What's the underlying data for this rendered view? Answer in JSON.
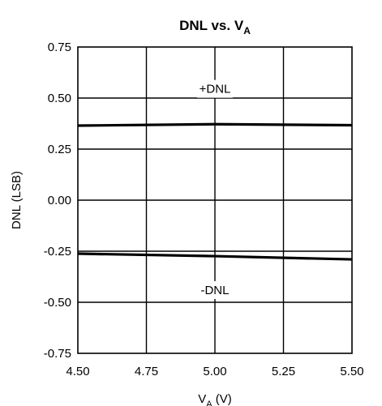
{
  "chart_data": {
    "type": "line",
    "title": {
      "main": "DNL vs. V",
      "sub": "A"
    },
    "xlabel": {
      "main": "V",
      "sub": "A",
      "suffix": " (V)"
    },
    "ylabel": "DNL (LSB)",
    "xlim": [
      4.5,
      5.5
    ],
    "ylim": [
      -0.75,
      0.75
    ],
    "x_ticks": [
      4.5,
      4.75,
      5.0,
      5.25,
      5.5
    ],
    "x_tick_labels": [
      "4.50",
      "4.75",
      "5.00",
      "5.25",
      "5.50"
    ],
    "y_ticks": [
      0.75,
      0.5,
      0.25,
      0.0,
      -0.25,
      -0.5,
      -0.75
    ],
    "y_tick_labels": [
      "0.75",
      "0.50",
      "0.25",
      "0.00",
      "-0.25",
      "-0.50",
      "-0.75"
    ],
    "grid": true,
    "series": [
      {
        "name": "+DNL",
        "x": [
          4.5,
          5.0,
          5.5
        ],
        "y": [
          0.365,
          0.372,
          0.367
        ]
      },
      {
        "name": "-DNL",
        "x": [
          4.5,
          5.0,
          5.5
        ],
        "y": [
          -0.262,
          -0.274,
          -0.29
        ]
      }
    ],
    "annotations": [
      {
        "text": "+DNL",
        "x": 5.0,
        "y": 0.545
      },
      {
        "text": "-DNL",
        "x": 5.0,
        "y": -0.44
      }
    ],
    "colors": {
      "line": "#000000",
      "grid": "#000000",
      "background": "#ffffff"
    }
  }
}
